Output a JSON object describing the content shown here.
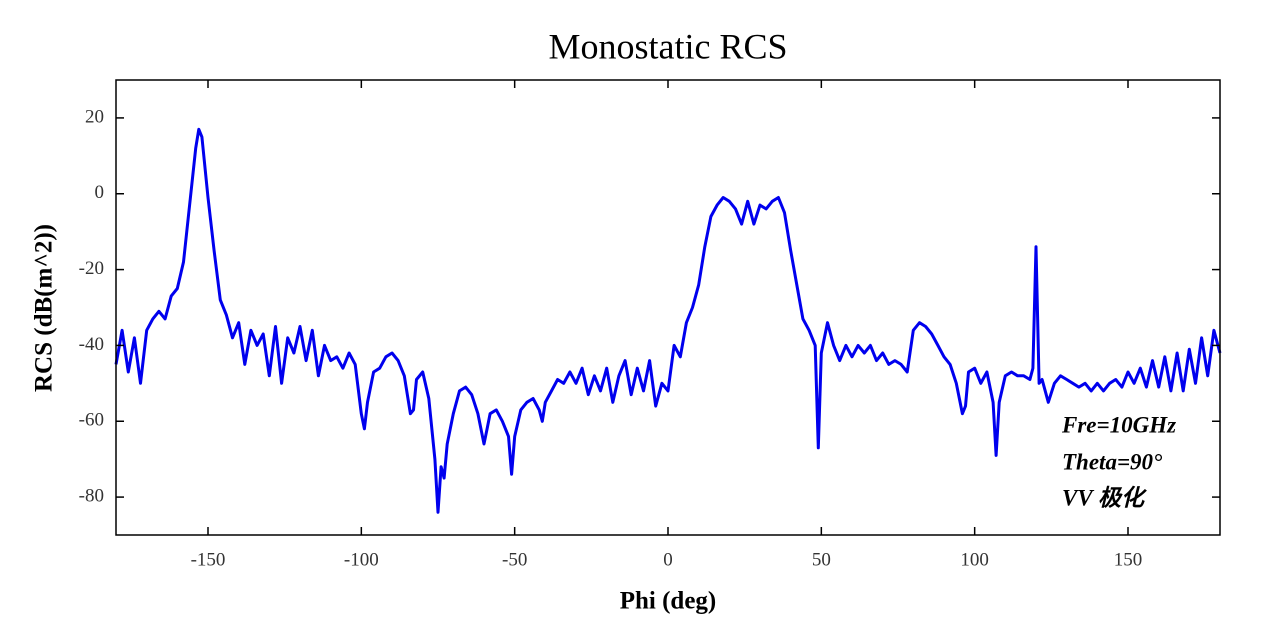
{
  "chart_data": {
    "type": "line",
    "title": "Monostatic RCS",
    "x_label": "Phi (deg)",
    "y_label": "RCS (dB(m^2))",
    "annotations": [
      "Fre=10GHz",
      "Theta=90°",
      "VV 极化"
    ],
    "xlim": [
      -180,
      180
    ],
    "xticks": [
      -150,
      -100,
      -50,
      0,
      50,
      100,
      150
    ],
    "ylim": [
      -90,
      30
    ],
    "yticks": [
      -80,
      -60,
      -40,
      -20,
      0,
      20
    ],
    "x": [
      -180,
      -178,
      -176,
      -174,
      -172,
      -170,
      -168,
      -166,
      -164,
      -162,
      -160,
      -158,
      -156,
      -154,
      -153,
      -152,
      -150,
      -148,
      -146,
      -144,
      -142,
      -140,
      -138,
      -136,
      -134,
      -132,
      -130,
      -128,
      -126,
      -124,
      -122,
      -120,
      -118,
      -116,
      -114,
      -112,
      -110,
      -108,
      -106,
      -104,
      -102,
      -100,
      -99,
      -98,
      -96,
      -94,
      -92,
      -90,
      -88,
      -86,
      -84,
      -83,
      -82,
      -80,
      -78,
      -76,
      -75,
      -74,
      -73,
      -72,
      -70,
      -68,
      -66,
      -64,
      -62,
      -60,
      -59,
      -58,
      -56,
      -54,
      -52,
      -51,
      -50,
      -48,
      -46,
      -44,
      -42,
      -41,
      -40,
      -38,
      -36,
      -34,
      -32,
      -30,
      -28,
      -26,
      -24,
      -22,
      -20,
      -18,
      -16,
      -14,
      -12,
      -10,
      -8,
      -6,
      -4,
      -2,
      0,
      2,
      4,
      6,
      8,
      10,
      12,
      14,
      16,
      18,
      20,
      22,
      24,
      26,
      28,
      30,
      32,
      34,
      36,
      38,
      40,
      42,
      44,
      46,
      48,
      49,
      50,
      52,
      54,
      56,
      58,
      60,
      62,
      64,
      66,
      68,
      70,
      72,
      74,
      76,
      78,
      80,
      82,
      84,
      86,
      88,
      90,
      92,
      94,
      96,
      97,
      98,
      100,
      102,
      104,
      106,
      107,
      108,
      110,
      112,
      114,
      116,
      118,
      119,
      120,
      121,
      122,
      124,
      126,
      128,
      130,
      132,
      134,
      136,
      138,
      140,
      142,
      144,
      146,
      148,
      150,
      152,
      154,
      156,
      158,
      160,
      162,
      164,
      166,
      168,
      170,
      172,
      174,
      176,
      178,
      180
    ],
    "series": [
      {
        "name": "RCS",
        "color": "#0000ee",
        "values": [
          -45,
          -36,
          -47,
          -38,
          -50,
          -36,
          -33,
          -31,
          -33,
          -27,
          -25,
          -18,
          -3,
          12,
          17,
          15,
          -1,
          -15,
          -28,
          -32,
          -38,
          -34,
          -45,
          -36,
          -40,
          -37,
          -48,
          -35,
          -50,
          -38,
          -42,
          -35,
          -44,
          -36,
          -48,
          -40,
          -44,
          -43,
          -46,
          -42,
          -45,
          -58,
          -62,
          -55,
          -47,
          -46,
          -43,
          -42,
          -44,
          -48,
          -58,
          -57,
          -49,
          -47,
          -54,
          -70,
          -84,
          -72,
          -75,
          -66,
          -58,
          -52,
          -51,
          -53,
          -58,
          -66,
          -62,
          -58,
          -57,
          -60,
          -64,
          -74,
          -64,
          -57,
          -55,
          -54,
          -57,
          -60,
          -55,
          -52,
          -49,
          -50,
          -47,
          -50,
          -46,
          -53,
          -48,
          -52,
          -46,
          -55,
          -48,
          -44,
          -53,
          -46,
          -52,
          -44,
          -56,
          -50,
          -52,
          -40,
          -43,
          -34,
          -30,
          -24,
          -14,
          -6,
          -3,
          -1,
          -2,
          -4,
          -8,
          -2,
          -8,
          -3,
          -4,
          -2,
          -1,
          -5,
          -15,
          -24,
          -33,
          -36,
          -40,
          -67,
          -42,
          -34,
          -40,
          -44,
          -40,
          -43,
          -40,
          -42,
          -40,
          -44,
          -42,
          -45,
          -44,
          -45,
          -47,
          -36,
          -34,
          -35,
          -37,
          -40,
          -43,
          -45,
          -50,
          -58,
          -56,
          -47,
          -46,
          -50,
          -47,
          -55,
          -69,
          -55,
          -48,
          -47,
          -48,
          -48,
          -49,
          -46,
          -14,
          -50,
          -49,
          -55,
          -50,
          -48,
          -49,
          -50,
          -51,
          -50,
          -52,
          -50,
          -52,
          -50,
          -49,
          -51,
          -47,
          -50,
          -46,
          -51,
          -44,
          -51,
          -43,
          -52,
          -42,
          -52,
          -41,
          -50,
          -38,
          -48,
          -36,
          -42
        ]
      }
    ]
  }
}
